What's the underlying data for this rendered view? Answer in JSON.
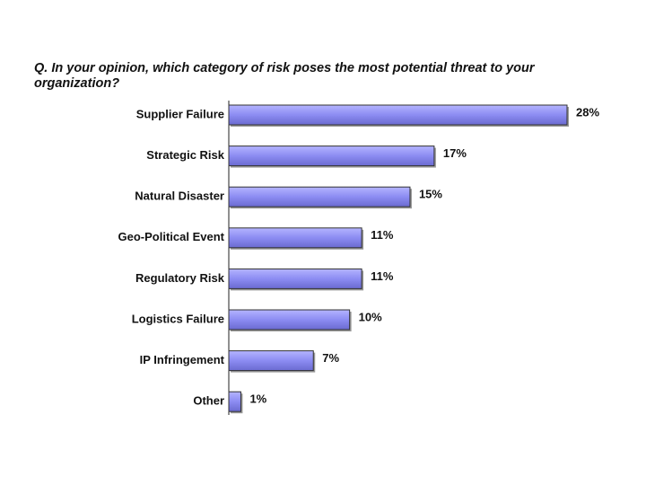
{
  "chart_data": {
    "type": "bar",
    "orientation": "horizontal",
    "title": "Q. In your opinion, which category of risk poses the most potential threat to your organization?",
    "categories": [
      "Supplier Failure",
      "Strategic Risk",
      "Natural Disaster",
      "Geo-Political Event",
      "Regulatory Risk",
      "Logistics Failure",
      "IP Infringement",
      "Other"
    ],
    "values": [
      28,
      17,
      15,
      11,
      11,
      10,
      7,
      1
    ],
    "value_labels": [
      "28%",
      "17%",
      "15%",
      "11%",
      "11%",
      "10%",
      "7%",
      "1%"
    ],
    "color": "#8c8cf2"
  }
}
